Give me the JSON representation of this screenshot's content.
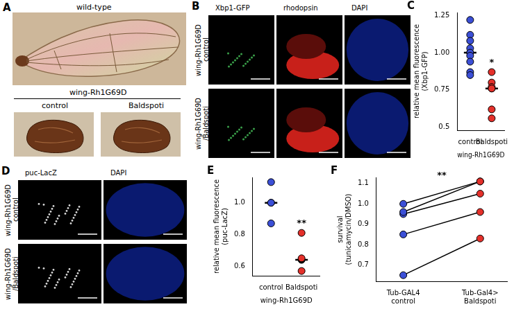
{
  "figure": {
    "panels": [
      {
        "panel": "A",
        "title": "wild-type",
        "group_label": "wing-Rh1G69D",
        "images": [
          "control",
          "Baldspoti"
        ]
      },
      {
        "panel": "B",
        "columns": [
          "Xbp1-GFP",
          "rhodopsin",
          "DAPI"
        ],
        "rows": [
          [
            "wing-Rh1G69D",
            "control"
          ],
          [
            "wing-Rh1G69D",
            "/Baldspoti"
          ]
        ]
      },
      {
        "panel": "D",
        "columns": [
          "puc-LacZ",
          "DAPI"
        ],
        "rows": [
          [
            "wing-Rh1G69D",
            "control"
          ],
          [
            "wing-Rh1G69D",
            "/Baldspoti"
          ]
        ]
      }
    ]
  },
  "chart_data": [
    {
      "panel": "C",
      "type": "dot",
      "categories": [
        "control",
        "Baldspoti"
      ],
      "x_label": "wing-Rh1G69D",
      "y_label": [
        "relative mean fluorescence",
        "(Xbp1-GFP)"
      ],
      "groups": [
        {
          "category": "control",
          "color": "#3b4fd6",
          "values": [
            1.22,
            1.12,
            1.08,
            1.03,
            1.0,
            0.98,
            0.94,
            0.87,
            0.85
          ],
          "median": 1.0
        },
        {
          "category": "Baldspoti",
          "color": "#e4302a",
          "values": [
            0.87,
            0.8,
            0.77,
            0.76,
            0.62,
            0.56
          ],
          "median": 0.76
        }
      ],
      "significance": "*",
      "ylim": [
        0.48,
        1.27
      ],
      "yticks": [
        0.5,
        0.75,
        {
          "value": 1,
          "label": "1.00"
        },
        1.25
      ],
      "grid": false
    },
    {
      "panel": "E",
      "type": "dot",
      "categories": [
        "control",
        "Baldspoti"
      ],
      "x_label": "wing-Rh1G69D",
      "y_label": [
        "relative mean fluorescence",
        "(puc-LacZ)"
      ],
      "groups": [
        {
          "category": "control",
          "color": "#3b4fd6",
          "values": [
            1.13,
            1.0,
            0.87
          ],
          "median": 1.0
        },
        {
          "category": "Baldspoti",
          "color": "#e4302a",
          "values": [
            0.81,
            0.65,
            0.57
          ],
          "median": 0.64
        }
      ],
      "significance": "**",
      "ylim": [
        0.54,
        1.16
      ],
      "yticks": [
        0.6,
        0.8,
        {
          "value": 1,
          "label": "1.0"
        }
      ],
      "grid": false
    },
    {
      "panel": "F",
      "type": "paired",
      "categories": [
        [
          "Tub-GAL4",
          "control"
        ],
        [
          "Tub-Gal4>",
          "Baldspoti"
        ]
      ],
      "y_label": [
        "survival",
        "(tunicamycin/DMSO)"
      ],
      "groups": [
        {
          "color": "#3b4fd6",
          "values": [
            1.0,
            0.96,
            0.95,
            0.85,
            0.65
          ]
        },
        {
          "color": "#e4302a",
          "values": [
            1.11,
            1.11,
            1.05,
            0.96,
            0.83
          ]
        }
      ],
      "significance": "**",
      "ylim": [
        0.62,
        1.13
      ],
      "yticks": [
        0.7,
        0.8,
        0.9,
        {
          "value": 1,
          "label": "1.0"
        },
        1.1
      ],
      "grid": false
    }
  ]
}
